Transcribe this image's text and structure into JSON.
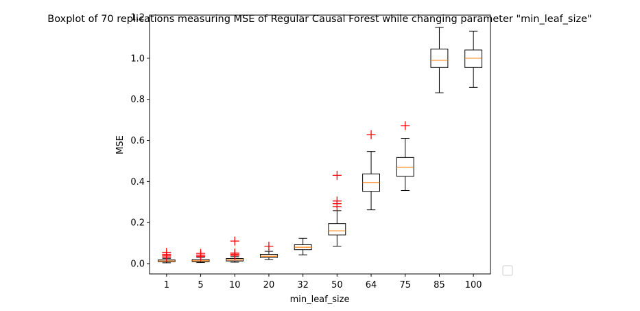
{
  "chart_data": {
    "type": "boxplot",
    "title": "Boxplot of 70 replications measuring MSE of Regular Causal Forest while changing parameter \"min_leaf_size\"",
    "xlabel": "min_leaf_size",
    "ylabel": "MSE",
    "ylim": [
      -0.05,
      1.21
    ],
    "yticks": [
      0.0,
      0.2,
      0.4,
      0.6,
      0.8,
      1.0,
      1.2
    ],
    "ytick_labels": [
      "0.0",
      "0.2",
      "0.4",
      "0.6",
      "0.8",
      "1.0",
      "1.2"
    ],
    "categories": [
      "1",
      "5",
      "10",
      "20",
      "32",
      "50",
      "64",
      "75",
      "85",
      "100"
    ],
    "boxes": [
      {
        "label": "1",
        "whislo": 0.004,
        "q1": 0.01,
        "med": 0.013,
        "q3": 0.018,
        "whishi": 0.026,
        "fliers": [
          0.032,
          0.038,
          0.045,
          0.055
        ]
      },
      {
        "label": "5",
        "whislo": 0.005,
        "q1": 0.01,
        "med": 0.014,
        "q3": 0.02,
        "whishi": 0.03,
        "fliers": [
          0.036,
          0.042,
          0.05
        ]
      },
      {
        "label": "10",
        "whislo": 0.007,
        "q1": 0.013,
        "med": 0.018,
        "q3": 0.025,
        "whishi": 0.034,
        "fliers": [
          0.04,
          0.046,
          0.052,
          0.11
        ]
      },
      {
        "label": "20",
        "whislo": 0.02,
        "q1": 0.03,
        "med": 0.036,
        "q3": 0.045,
        "whishi": 0.06,
        "fliers": [
          0.085
        ]
      },
      {
        "label": "32",
        "whislo": 0.043,
        "q1": 0.068,
        "med": 0.08,
        "q3": 0.092,
        "whishi": 0.123,
        "fliers": []
      },
      {
        "label": "50",
        "whislo": 0.085,
        "q1": 0.14,
        "med": 0.16,
        "q3": 0.195,
        "whishi": 0.258,
        "fliers": [
          0.278,
          0.292,
          0.305,
          0.43
        ]
      },
      {
        "label": "64",
        "whislo": 0.262,
        "q1": 0.352,
        "med": 0.395,
        "q3": 0.437,
        "whishi": 0.546,
        "fliers": [
          0.628
        ]
      },
      {
        "label": "75",
        "whislo": 0.356,
        "q1": 0.425,
        "med": 0.47,
        "q3": 0.517,
        "whishi": 0.61,
        "fliers": [
          0.672
        ]
      },
      {
        "label": "85",
        "whislo": 0.832,
        "q1": 0.955,
        "med": 0.99,
        "q3": 1.045,
        "whishi": 1.15,
        "fliers": []
      },
      {
        "label": "100",
        "whislo": 0.858,
        "q1": 0.955,
        "med": 1.0,
        "q3": 1.04,
        "whishi": 1.132,
        "fliers": []
      }
    ],
    "colors": {
      "box": "#000000",
      "median": "#ff7f0e",
      "flier": "#ff0000",
      "axis": "#000000",
      "background": "#ffffff"
    },
    "grid": false,
    "legend": {
      "placement": "lower-right-outside",
      "entries": []
    }
  }
}
